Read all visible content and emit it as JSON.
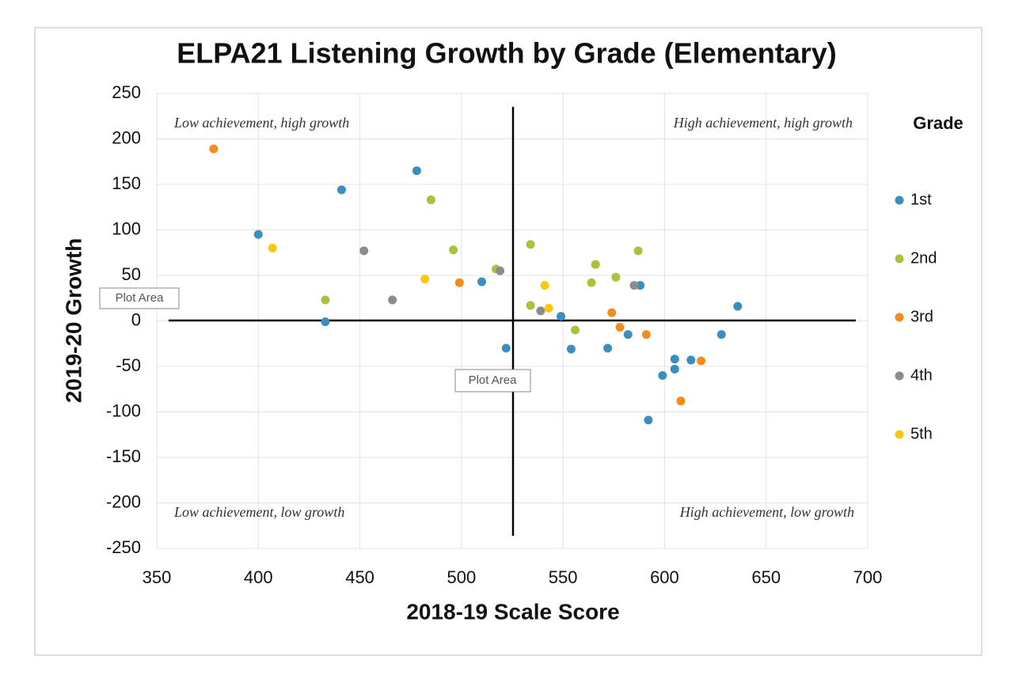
{
  "chart_data": {
    "type": "scatter",
    "title": "ELPA21 Listening Growth by Grade (Elementary)",
    "x_label": "2018-19 Scale Score",
    "y_label": "2019-20 Growth",
    "legend_title": "Grade",
    "annotations": [
      "Low achievement, high growth",
      "High achievement, high growth",
      "Low achievement, low growth",
      "High achievement, low growth"
    ],
    "tooltips": [
      "Plot Area",
      "Plot Area"
    ],
    "xlim": [
      350,
      700
    ],
    "xticks": [
      350,
      400,
      450,
      500,
      550,
      600,
      650,
      700
    ],
    "ylim": [
      -250,
      250
    ],
    "yticks": [
      -250,
      -200,
      -150,
      -100,
      -50,
      0,
      50,
      100,
      150,
      200,
      250
    ],
    "grid": true,
    "legend": "right",
    "series": [
      {
        "name": "1st",
        "color": "#3a8fc0",
        "x": [
          400,
          441,
          478,
          433,
          510,
          522,
          549,
          554,
          572,
          582,
          588,
          599,
          605,
          605,
          613,
          592,
          628,
          636
        ],
        "values": [
          95,
          144,
          165,
          -1,
          43,
          -30,
          5,
          -31,
          -30,
          -15,
          39,
          -60,
          -42,
          -53,
          -43,
          -109,
          -15,
          16
        ]
      },
      {
        "name": "2nd",
        "color": "#a4c43c",
        "x": [
          485,
          433,
          496,
          517,
          534,
          534,
          556,
          566,
          564,
          576,
          587
        ],
        "values": [
          133,
          23,
          78,
          57,
          84,
          17,
          -10,
          62,
          42,
          48,
          77
        ]
      },
      {
        "name": "3rd",
        "color": "#f28c1c",
        "x": [
          378,
          499,
          574,
          578,
          591,
          618,
          608
        ],
        "values": [
          189,
          42,
          9,
          -7,
          -15,
          -44,
          -88
        ]
      },
      {
        "name": "4th",
        "color": "#8c8c8c",
        "x": [
          452,
          466,
          519,
          539,
          585
        ],
        "values": [
          77,
          23,
          55,
          11,
          39
        ]
      },
      {
        "name": "5th",
        "color": "#fbc70e",
        "x": [
          407,
          482,
          541,
          543
        ],
        "values": [
          80,
          46,
          39,
          14
        ]
      }
    ]
  }
}
